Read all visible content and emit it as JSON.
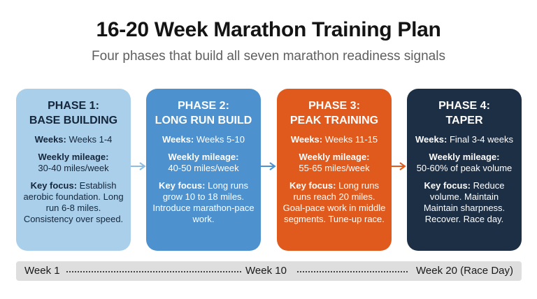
{
  "header": {
    "title": "16-20 Week Marathon Training Plan",
    "subtitle": "Four phases that build all seven marathon readiness signals"
  },
  "labels": {
    "weeks": "Weeks:",
    "weekly_mileage": "Weekly mileage:",
    "key_focus": "Key focus:"
  },
  "phases": [
    {
      "title_line1": "PHASE 1:",
      "title_line2": "BASE BUILDING",
      "weeks": "Weeks 1-4",
      "mileage": "30-40 miles/week",
      "focus": "Establish aerobic foundation. Long run 6-8 miles. Consistency over speed.",
      "color": "#a9cfea"
    },
    {
      "title_line1": "PHASE 2:",
      "title_line2": "LONG RUN BUILD",
      "weeks": "Weeks 5-10",
      "mileage": "40-50 miles/week",
      "focus": "Long runs grow 10 to 18 miles. Introduce marathon-pace work.",
      "color": "#4d92cf"
    },
    {
      "title_line1": "PHASE 3:",
      "title_line2": "PEAK TRAINING",
      "weeks": "Weeks 11-15",
      "mileage": "55-65 miles/week",
      "focus": "Long runs runs reach 20 miles. Goal-pace work in middle segments. Tune-up race.",
      "color": "#e05a1e"
    },
    {
      "title_line1": "PHASE 4:",
      "title_line2": "TAPER",
      "weeks": "Final 3-4 weeks",
      "mileage": "50-60% of peak volume",
      "focus": "Reduce volume. Maintain Maintain sharpness. Recover. Race day.",
      "color": "#1d2f45"
    }
  ],
  "timeline": {
    "start": "Week 1",
    "middle": "Week 10",
    "end": "Week 20 (Race Day)"
  }
}
